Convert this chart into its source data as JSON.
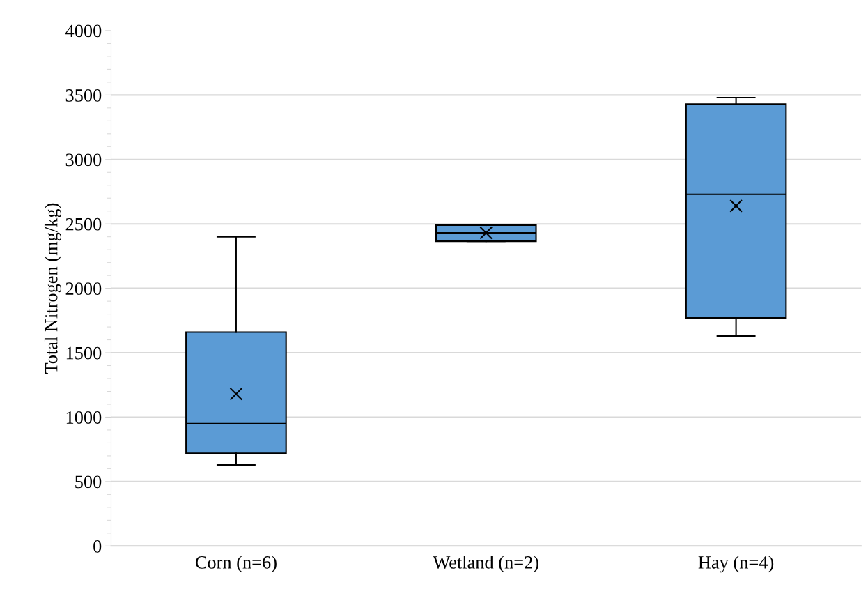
{
  "chart_data": {
    "type": "box",
    "ylabel": "Total Nitrogen (mg/kg)",
    "categories": [
      "Corn (n=6)",
      "Wetland (n=2)",
      "Hay (n=4)"
    ],
    "series": [
      {
        "color": "#5b9bd5",
        "boxes": [
          {
            "low": 630,
            "q1": 720,
            "median": 950,
            "q3": 1660,
            "high": 2400,
            "mean": 1180
          },
          {
            "low": 2365,
            "q1": 2365,
            "median": 2430,
            "q3": 2490,
            "high": 2490,
            "mean": 2430
          },
          {
            "low": 1630,
            "q1": 1770,
            "median": 2730,
            "q3": 3430,
            "high": 3480,
            "mean": 2640
          }
        ]
      }
    ],
    "ylim": [
      0,
      4000
    ],
    "yticks": [
      0,
      500,
      1000,
      1500,
      2000,
      2500,
      3000,
      3500,
      4000
    ],
    "grid": "y"
  }
}
